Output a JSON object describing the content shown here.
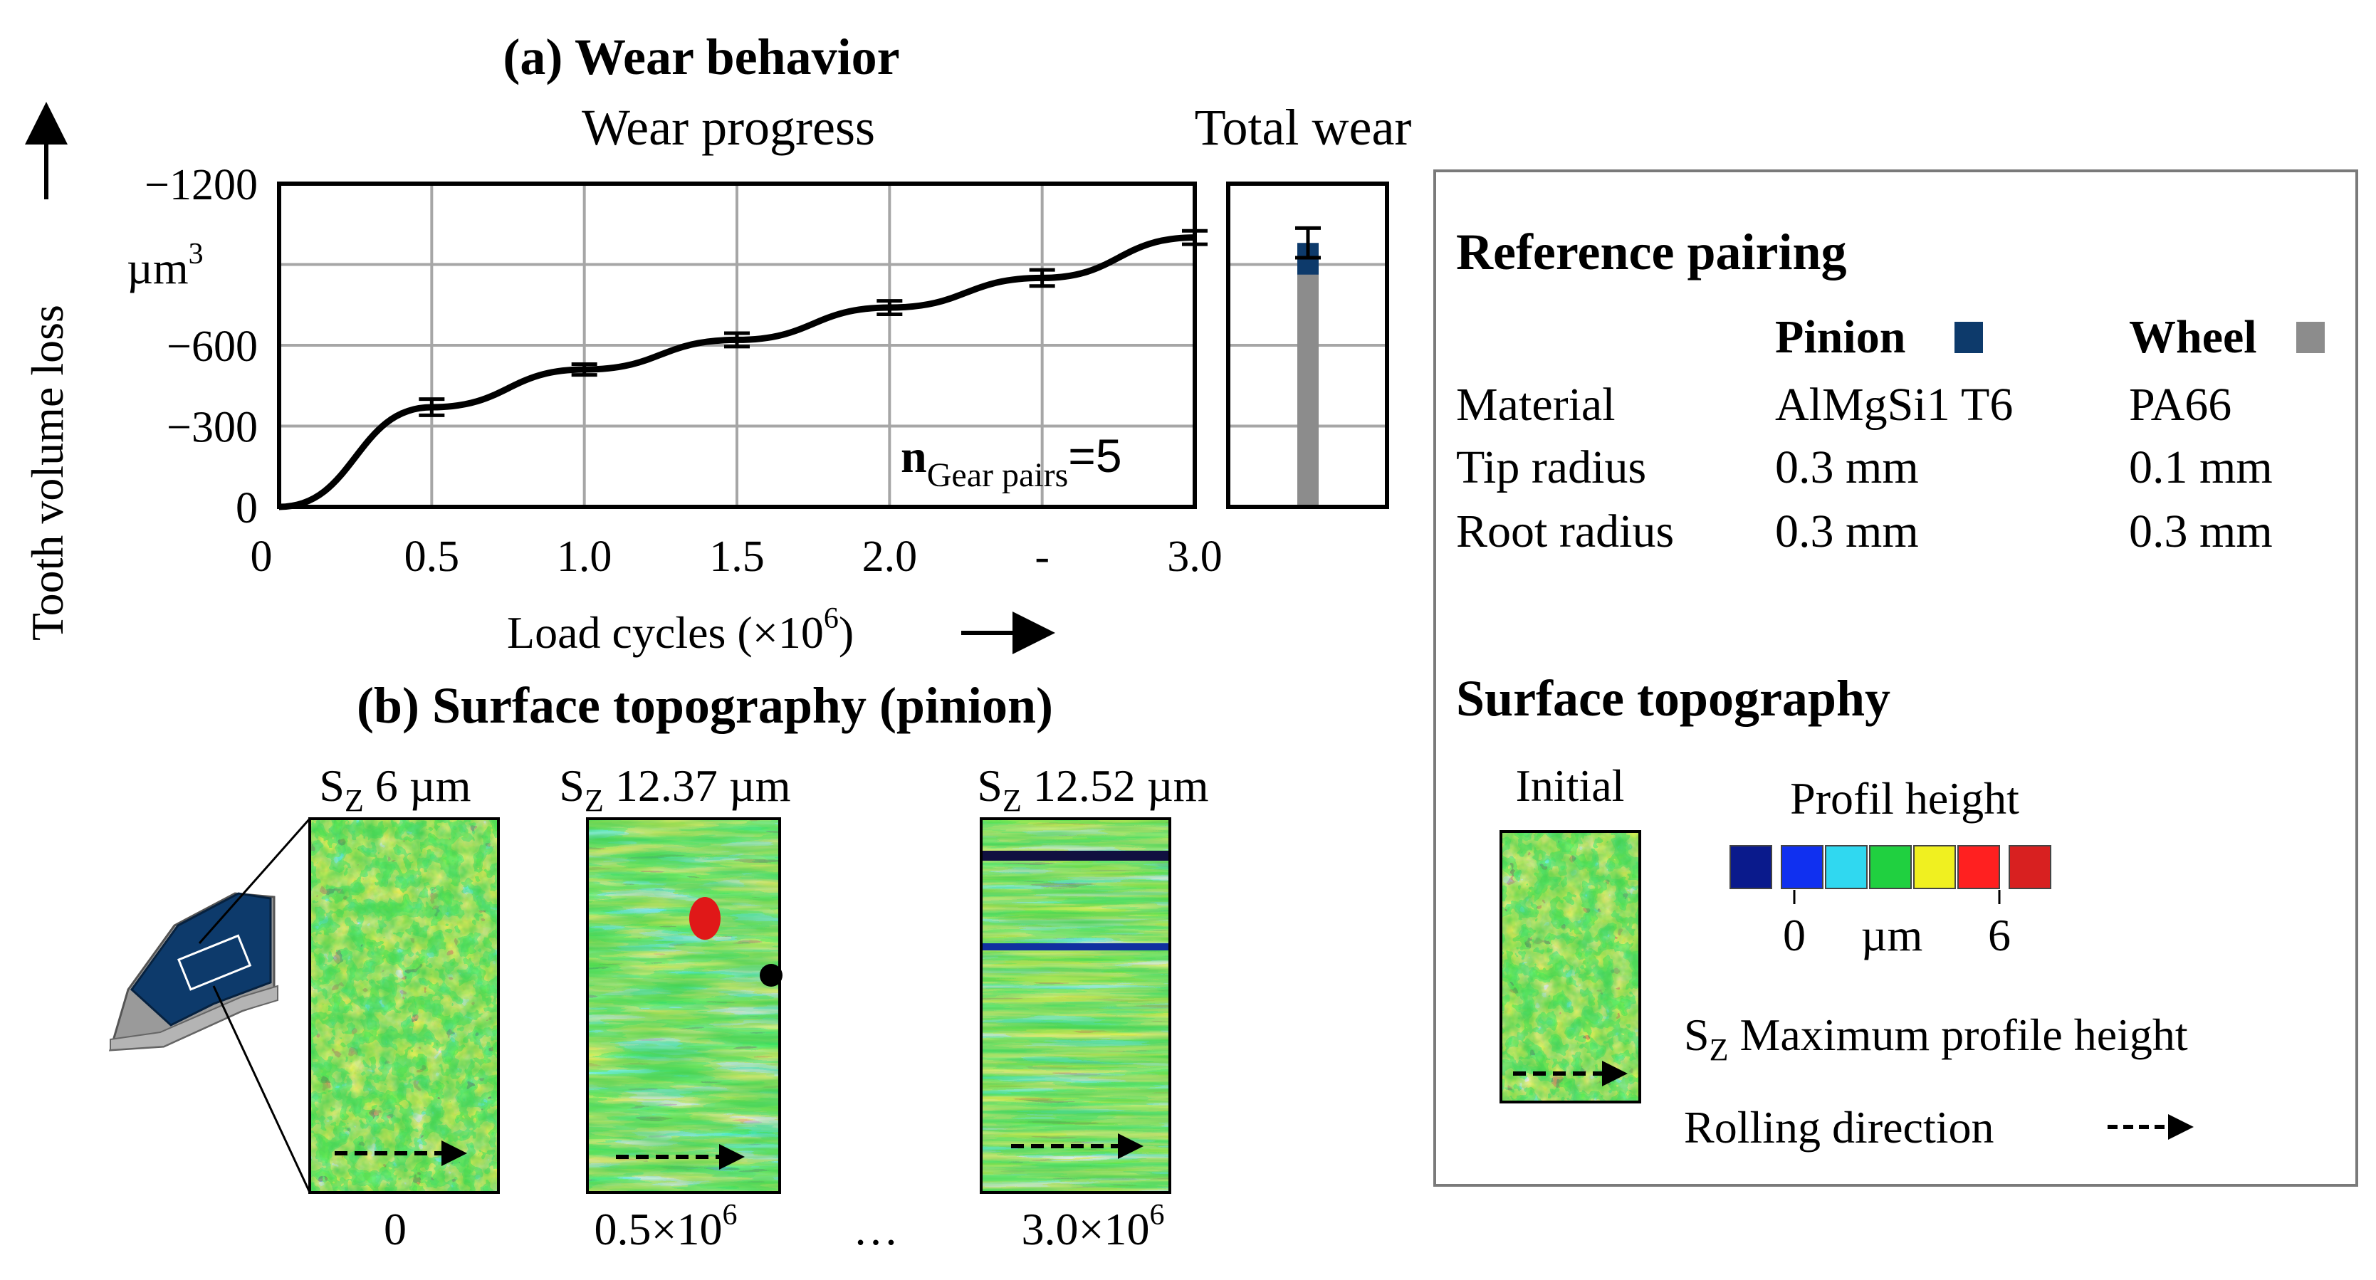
{
  "section_a": {
    "title": "(a) Wear behavior",
    "left_title": "Wear progress",
    "right_title": "Total wear",
    "n_label_main": "n",
    "n_label_sub": "Gear pairs",
    "n_label_value": "=5"
  },
  "chart_data": [
    {
      "type": "line",
      "title": "Wear progress",
      "xlabel": "Load cycles (×10",
      "xlabel_exp": "6",
      "xlabel_close": ")",
      "ylabel": "Tooth volume loss",
      "y_unit": "µm",
      "y_unit_exp": "3",
      "xlim": [
        0,
        3.0
      ],
      "ylim": [
        0,
        -1200
      ],
      "x_ticks": [
        0,
        0.5,
        1.0,
        1.5,
        2.0,
        2.5,
        3.0
      ],
      "x_tick_labels": [
        "0",
        "0.5",
        "1.0",
        "1.5",
        "2.0",
        "-",
        "3.0"
      ],
      "y_ticks": [
        -1200,
        -900,
        -600,
        -300,
        0
      ],
      "y_tick_labels": [
        "−1200",
        "",
        "−600",
        "−300",
        "0"
      ],
      "grid": true,
      "series": [
        {
          "name": "Pinion wear progress",
          "color": "#000000",
          "x": [
            0,
            0.5,
            1.0,
            1.5,
            2.0,
            2.5,
            3.0
          ],
          "y": [
            0,
            -370,
            -510,
            -620,
            -740,
            -850,
            -1000
          ],
          "error": [
            0,
            30,
            20,
            25,
            25,
            30,
            25
          ]
        }
      ]
    },
    {
      "type": "bar",
      "title": "Total wear",
      "ylim": [
        0,
        -1200
      ],
      "series": [
        {
          "name": "Wheel",
          "color": "#8c8c8c",
          "value": -930,
          "error": 0
        },
        {
          "name": "Pinion",
          "color": "#0d3a6b",
          "value": -980,
          "error": 110
        }
      ]
    }
  ],
  "section_b": {
    "title": "(b) Surface topography (pinion)",
    "maps": [
      {
        "sz_label": "S",
        "sz_sub": "Z",
        "sz_value": " 6 µm",
        "caption": "0",
        "caption_exp": ""
      },
      {
        "sz_label": "S",
        "sz_sub": "Z",
        "sz_value": " 12.37 µm",
        "caption": "0.5×10",
        "caption_exp": "6"
      },
      {
        "sz_label": "S",
        "sz_sub": "Z",
        "sz_value": " 12.52 µm",
        "caption": "3.0×10",
        "caption_exp": "6"
      }
    ],
    "ellipsis": "…"
  },
  "legend": {
    "ref_title": "Reference pairing",
    "col_pinion": "Pinion",
    "col_wheel": "Wheel",
    "pinion_color": "#0d3a6b",
    "wheel_color": "#8c8c8c",
    "rows": [
      {
        "label": "Material",
        "pinion": "AlMgSi1 T6",
        "wheel": "PA66"
      },
      {
        "label": "Tip radius",
        "pinion": "0.3 mm",
        "wheel": "0.1 mm"
      },
      {
        "label": "Root radius",
        "pinion": "0.3 mm",
        "wheel": "0.3 mm"
      }
    ],
    "topo_title": "Surface topography",
    "initial_label": "Initial",
    "profil_height": "Profil height",
    "scale_min": "0",
    "scale_unit": "µm",
    "scale_max": "6",
    "scale_colors": [
      "#0a1a8c",
      "#1030f0",
      "#30d8f0",
      "#20d040",
      "#f0f020",
      "#ff2020",
      "#d82020"
    ],
    "sz_def_label": "S",
    "sz_def_sub": "Z",
    "sz_def_text": " Maximum profile height",
    "rolling_text": "Rolling direction"
  }
}
